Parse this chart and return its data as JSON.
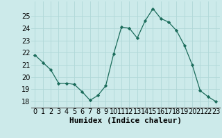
{
  "x": [
    0,
    1,
    2,
    3,
    4,
    5,
    6,
    7,
    8,
    9,
    10,
    11,
    12,
    13,
    14,
    15,
    16,
    17,
    18,
    19,
    20,
    21,
    22,
    23
  ],
  "y": [
    21.8,
    21.2,
    20.6,
    19.5,
    19.5,
    19.4,
    18.8,
    18.1,
    18.5,
    19.3,
    21.9,
    24.1,
    24.0,
    23.2,
    24.6,
    25.6,
    24.8,
    24.5,
    23.8,
    22.6,
    21.0,
    18.9,
    18.4,
    18.0
  ],
  "xlabel": "Humidex (Indice chaleur)",
  "ylim": [
    17.5,
    26.2
  ],
  "xlim": [
    -0.5,
    23.5
  ],
  "yticks": [
    18,
    19,
    20,
    21,
    22,
    23,
    24,
    25
  ],
  "xticks": [
    0,
    1,
    2,
    3,
    4,
    5,
    6,
    7,
    8,
    9,
    10,
    11,
    12,
    13,
    14,
    15,
    16,
    17,
    18,
    19,
    20,
    21,
    22,
    23
  ],
  "line_color": "#1a6b5a",
  "marker_color": "#1a6b5a",
  "bg_color": "#cceaea",
  "grid_color": "#b0d8d8",
  "xlabel_fontsize": 8,
  "tick_fontsize": 7
}
